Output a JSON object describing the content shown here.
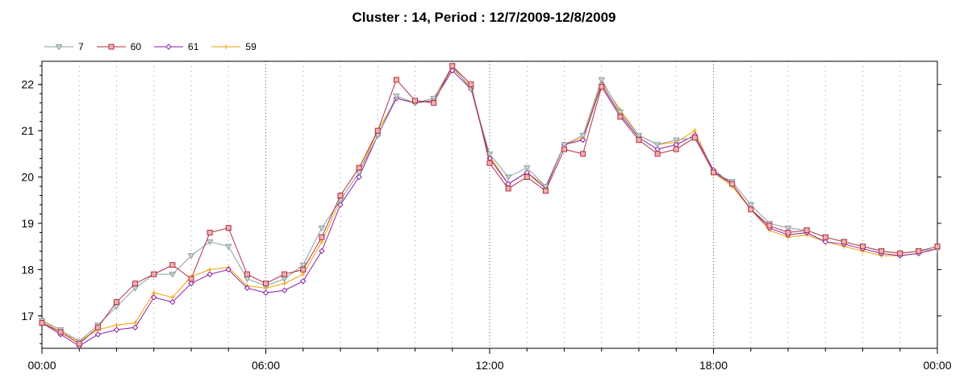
{
  "chart_data": {
    "type": "line",
    "title": "Cluster : 14, Period : 12/7/2009-12/8/2009",
    "xlabel": "",
    "ylabel": "",
    "x_unit": "hours",
    "xlim": [
      0,
      24
    ],
    "ylim": [
      16.3,
      22.5
    ],
    "x_tick_labels": [
      "00:00",
      "06:00",
      "12:00",
      "18:00",
      "00:00"
    ],
    "y_ticks": [
      17,
      18,
      19,
      20,
      21,
      22
    ],
    "grid": "dotted",
    "legend_position": "top-left",
    "series": [
      {
        "name": "7",
        "color": "#8c9ea0",
        "marker": "triangle-down",
        "x": [
          0,
          0.5,
          1,
          1.5,
          2,
          2.5,
          3,
          3.5,
          4,
          4.5,
          5,
          5.5,
          6,
          6.5,
          7,
          7.5,
          8,
          8.5,
          9,
          9.5,
          10,
          10.5,
          11,
          11.5,
          12,
          12.5,
          13,
          13.5,
          14,
          14.5,
          15,
          15.5,
          16,
          16.5,
          17,
          17.5,
          18,
          18.5,
          19,
          19.5,
          20,
          20.5,
          21,
          21.5,
          22,
          22.5,
          23,
          23.5,
          24
        ],
        "values": [
          16.9,
          16.7,
          16.45,
          16.8,
          17.2,
          17.6,
          17.9,
          17.9,
          18.3,
          18.6,
          18.5,
          17.8,
          17.65,
          17.8,
          18.1,
          18.9,
          19.5,
          20.1,
          20.9,
          21.75,
          21.6,
          21.7,
          22.4,
          21.9,
          20.5,
          20.0,
          20.2,
          19.8,
          20.7,
          20.9,
          22.1,
          21.4,
          20.9,
          20.7,
          20.8,
          20.85,
          20.1,
          19.9,
          19.4,
          19.0,
          18.9,
          18.85,
          18.7,
          18.6,
          18.5,
          18.4,
          18.35,
          18.4,
          18.45
        ]
      },
      {
        "name": "60",
        "color": "#b03040",
        "marker": "square",
        "x": [
          0,
          0.5,
          1,
          1.5,
          2,
          2.5,
          3,
          3.5,
          4,
          4.5,
          5,
          5.5,
          6,
          6.5,
          7,
          7.5,
          8,
          8.5,
          9,
          9.5,
          10,
          10.5,
          11,
          11.5,
          12,
          12.5,
          13,
          13.5,
          14,
          14.5,
          15,
          15.5,
          16,
          16.5,
          17,
          17.5,
          18,
          18.5,
          19,
          19.5,
          20,
          20.5,
          21,
          21.5,
          22,
          22.5,
          23,
          23.5,
          24
        ],
        "values": [
          16.85,
          16.65,
          16.4,
          16.75,
          17.3,
          17.7,
          17.9,
          18.1,
          17.8,
          18.8,
          18.9,
          17.9,
          17.7,
          17.9,
          18.0,
          18.7,
          19.6,
          20.2,
          21.0,
          22.1,
          21.65,
          21.6,
          22.4,
          22.0,
          20.3,
          19.75,
          20.0,
          19.7,
          20.6,
          20.5,
          21.95,
          21.3,
          20.8,
          20.5,
          20.6,
          20.85,
          20.1,
          19.85,
          19.3,
          18.95,
          18.8,
          18.85,
          18.7,
          18.6,
          18.5,
          18.4,
          18.35,
          18.4,
          18.5
        ]
      },
      {
        "name": "61",
        "color": "#8a1fa8",
        "marker": "diamond",
        "x": [
          0,
          0.5,
          1,
          1.5,
          2,
          2.5,
          3,
          3.5,
          4,
          4.5,
          5,
          5.5,
          6,
          6.5,
          7,
          7.5,
          8,
          8.5,
          9,
          9.5,
          10,
          10.5,
          11,
          11.5,
          12,
          12.5,
          13,
          13.5,
          14,
          14.5,
          15,
          15.5,
          16,
          16.5,
          17,
          17.5,
          18,
          18.5,
          19,
          19.5,
          20,
          20.5,
          21,
          21.5,
          22,
          22.5,
          23,
          23.5,
          24
        ],
        "values": [
          16.85,
          16.6,
          16.35,
          16.6,
          16.7,
          16.75,
          17.4,
          17.3,
          17.7,
          17.9,
          18.0,
          17.6,
          17.5,
          17.55,
          17.75,
          18.4,
          19.4,
          20.0,
          20.9,
          21.7,
          21.6,
          21.65,
          22.3,
          21.9,
          20.4,
          19.85,
          20.1,
          19.75,
          20.7,
          20.8,
          22.0,
          21.35,
          20.85,
          20.6,
          20.7,
          20.9,
          20.15,
          19.85,
          19.3,
          18.9,
          18.75,
          18.8,
          18.6,
          18.55,
          18.45,
          18.35,
          18.3,
          18.35,
          18.45
        ]
      },
      {
        "name": "59",
        "color": "#f0a000",
        "marker": "plus",
        "x": [
          0,
          0.5,
          1,
          1.5,
          2,
          2.5,
          3,
          3.5,
          4,
          4.5,
          5,
          5.5,
          6,
          6.5,
          7,
          7.5,
          8,
          8.5,
          9,
          9.5,
          10,
          10.5,
          11,
          11.5,
          12,
          12.5,
          13,
          13.5,
          14,
          14.5,
          15,
          15.5,
          16,
          16.5,
          17,
          17.5,
          18,
          18.5,
          19,
          19.5,
          20,
          20.5,
          21,
          21.5,
          22,
          22.5,
          23,
          23.5,
          24
        ],
        "values": [
          16.9,
          16.65,
          16.45,
          16.7,
          16.8,
          16.85,
          17.5,
          17.4,
          17.85,
          18.0,
          18.05,
          17.65,
          17.6,
          17.7,
          17.9,
          18.6,
          19.5,
          20.1,
          21.0,
          21.7,
          21.6,
          21.7,
          22.35,
          21.95,
          20.45,
          19.85,
          20.1,
          19.8,
          20.7,
          20.85,
          22.05,
          21.45,
          20.9,
          20.7,
          20.75,
          21.0,
          20.1,
          19.8,
          19.3,
          18.85,
          18.7,
          18.75,
          18.6,
          18.5,
          18.4,
          18.3,
          18.3,
          18.35,
          18.45
        ]
      }
    ]
  }
}
